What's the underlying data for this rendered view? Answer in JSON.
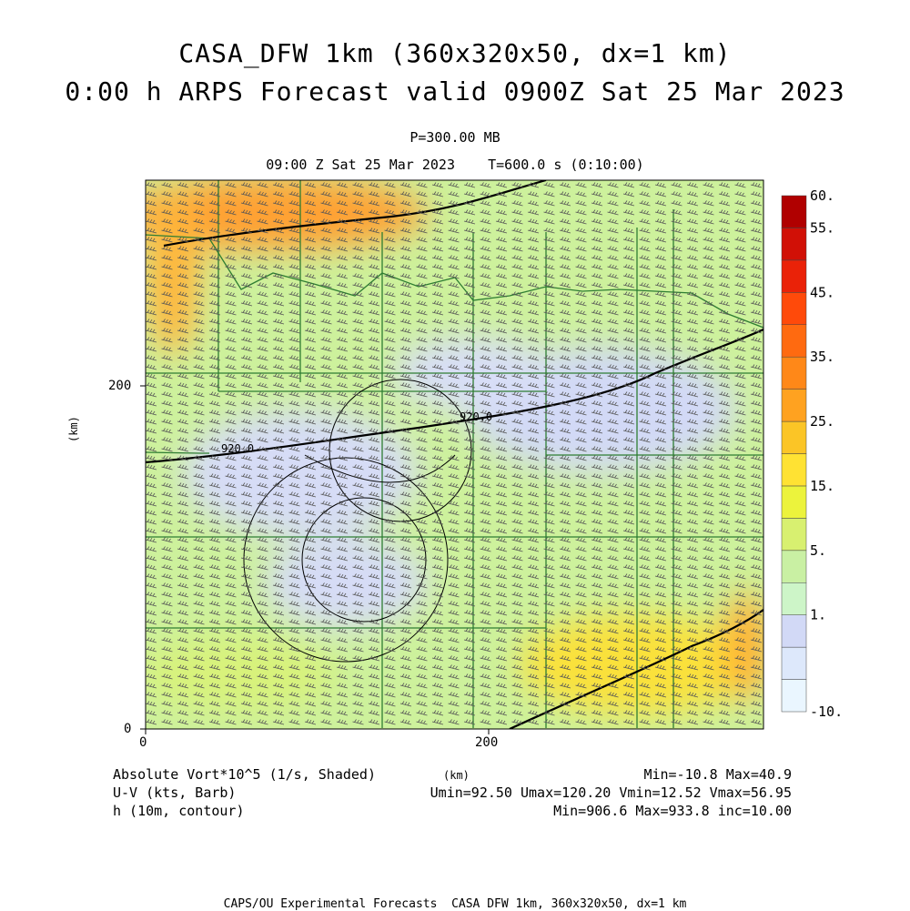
{
  "header": {
    "title_line1": "CASA_DFW 1km (360x320x50, dx=1 km)",
    "title_line2": "0:00 h ARPS Forecast valid 0900Z Sat 25 Mar 2023",
    "pressure_level": "P=300.00 MB",
    "time_line": "09:00 Z Sat 25 Mar 2023    T=600.0 s (0:10:00)"
  },
  "axes": {
    "xlabel": "(km)",
    "ylabel": "(km)",
    "x_ticks": [
      "0",
      "200"
    ],
    "y_ticks": [
      "0",
      "200"
    ]
  },
  "legend": {
    "fields": [
      "Absolute Vort*10^5 (1/s, Shaded)",
      "U-V (kts, Barb)",
      "h (10m, contour)"
    ],
    "stats": [
      "Min=-10.8 Max=40.9",
      "Umin=92.50 Umax=120.20 Vmin=12.52 Vmax=56.95",
      "Min=906.6 Max=933.8 inc=10.00"
    ]
  },
  "footer": "CAPS/OU Experimental Forecasts  CASA DFW 1km, 360x320x50, dx=1 km",
  "chart_data": {
    "type": "heatmap",
    "title": "CASA_DFW 1km (360x320x50, dx=1 km)",
    "subtitle": "0:00 h ARPS Forecast valid 0900Z Sat 25 Mar 2023",
    "xlabel": "(km)",
    "ylabel": "(km)",
    "xlim": [
      0,
      360
    ],
    "ylim": [
      0,
      320
    ],
    "x_ticks": [
      0,
      200
    ],
    "y_ticks": [
      0,
      200
    ],
    "grid": false,
    "colorbar": {
      "levels": [
        -10,
        1,
        5,
        15,
        25,
        35,
        45,
        55,
        60
      ],
      "tick_labels": [
        "-10.",
        "1.",
        "5.",
        "15.",
        "25.",
        "35.",
        "45.",
        "55.",
        "60."
      ],
      "colors": [
        "#eaf6ff",
        "#dde8fb",
        "#d2d9f6",
        "#cdf5c8",
        "#c9f0a3",
        "#d8f070",
        "#ecf33c",
        "#ffe233",
        "#fbc526",
        "#ffa220",
        "#ff8818",
        "#ff6a10",
        "#ff4a0a",
        "#ea2208",
        "#d11006",
        "#b00000"
      ]
    },
    "vorticity_stats": {
      "min": -10.8,
      "max": 40.9
    },
    "wind_stats": {
      "umin": 92.5,
      "umax": 120.2,
      "vmin": 12.52,
      "vmax": 56.95
    },
    "height_contours": {
      "min": 906.6,
      "max": 933.8,
      "inc": 10.0,
      "labels": [
        "920.0",
        "920.0"
      ]
    },
    "field_regions": [
      {
        "name": "northwest maximum",
        "level": 30
      },
      {
        "name": "central minimum",
        "level": 2
      },
      {
        "name": "east-central minimum",
        "level": 2
      },
      {
        "name": "southeast maximum",
        "level": 22
      },
      {
        "name": "background",
        "level": 10
      }
    ],
    "wind_barb_direction": "west-southwest"
  }
}
